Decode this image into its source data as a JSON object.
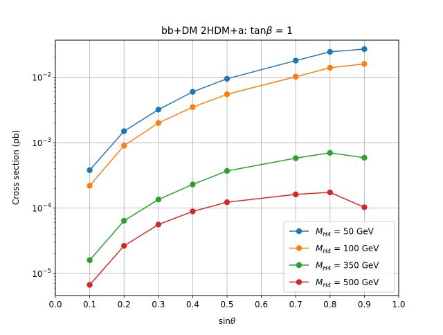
{
  "chart_data": {
    "type": "line",
    "title_main": "bb+DM 2HDM+a: tan",
    "title_symbol": "β",
    "title_tail": " = 1",
    "xlabel_main": "sin",
    "xlabel_symbol": "θ",
    "ylabel": "Cross section (pb)",
    "x_scale": "linear",
    "y_scale": "log",
    "xlim": [
      0.0,
      1.0
    ],
    "ylim": [
      4.6e-06,
      0.037
    ],
    "x_ticks": [
      "0.0",
      "0.1",
      "0.2",
      "0.3",
      "0.4",
      "0.5",
      "0.6",
      "0.7",
      "0.8",
      "0.9",
      "1.0"
    ],
    "y_ticks": [
      {
        "base": "10",
        "exp": "−5",
        "value": 1e-05
      },
      {
        "base": "10",
        "exp": "−4",
        "value": 0.0001
      },
      {
        "base": "10",
        "exp": "−3",
        "value": 0.001
      },
      {
        "base": "10",
        "exp": "−2",
        "value": 0.01
      }
    ],
    "grid": true,
    "legend_position": "lower-right",
    "series": [
      {
        "name_var": "M",
        "name_sub": "H4",
        "name_value": " = 50 GeV",
        "color": "#1f77b4",
        "x": [
          0.1,
          0.2,
          0.3,
          0.4,
          0.5,
          0.7,
          0.8,
          0.9
        ],
        "y": [
          0.00038,
          0.0015,
          0.0032,
          0.006,
          0.0095,
          0.018,
          0.0245,
          0.027
        ]
      },
      {
        "name_var": "M",
        "name_sub": "H4",
        "name_value": " = 100 GeV",
        "color": "#ff7f0e",
        "x": [
          0.1,
          0.2,
          0.3,
          0.4,
          0.5,
          0.7,
          0.8,
          0.9
        ],
        "y": [
          0.00022,
          0.0009,
          0.002,
          0.0035,
          0.0055,
          0.0102,
          0.014,
          0.016
        ]
      },
      {
        "name_var": "M",
        "name_sub": "H4",
        "name_value": " = 350 GeV",
        "color": "#2ca02c",
        "x": [
          0.1,
          0.2,
          0.3,
          0.4,
          0.5,
          0.7,
          0.8,
          0.9
        ],
        "y": [
          1.6e-05,
          6.4e-05,
          0.000135,
          0.00023,
          0.00037,
          0.00058,
          0.0007,
          0.00059
        ]
      },
      {
        "name_var": "M",
        "name_sub": "H4",
        "name_value": " = 500 GeV",
        "color": "#d62728",
        "x": [
          0.1,
          0.2,
          0.3,
          0.4,
          0.5,
          0.7,
          0.8,
          0.9
        ],
        "y": [
          6.7e-06,
          2.65e-05,
          5.6e-05,
          8.9e-05,
          0.000123,
          0.000162,
          0.000174,
          0.000103
        ]
      }
    ]
  }
}
